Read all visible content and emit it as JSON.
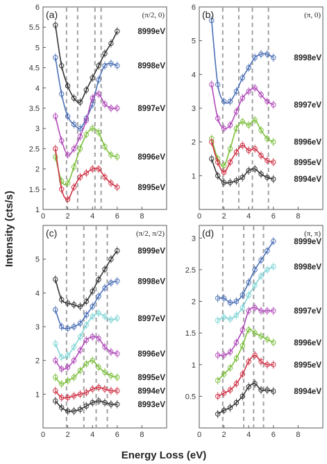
{
  "ylabel": "Intensity (cts/s)",
  "xlabel": "Energy Loss (eV)",
  "colors": {
    "black": "#333333",
    "blue": "#4a6fb5",
    "magenta": "#b04ab8",
    "green": "#7cbf3c",
    "red": "#cf3347",
    "cyan": "#7fd4d6",
    "dashed": "#a0a0a0"
  },
  "chart_data": [
    {
      "type": "line",
      "panel_label": "(a)",
      "q_label": "(π/2, 0)",
      "xlim": [
        0,
        10
      ],
      "ylim": [
        1,
        6
      ],
      "xticks": [
        "0",
        "2",
        "4",
        "6",
        "8"
      ],
      "yticks": [
        "1",
        "1.5",
        "2",
        "2.5",
        "3",
        "3.5",
        "4",
        "4.5",
        "5",
        "5.5",
        "6"
      ],
      "dashed_lines": [
        1.9,
        2.8,
        4.2,
        4.7
      ],
      "series": [
        {
          "name": "8999eV",
          "color": "black",
          "x": [
            1.0,
            1.5,
            2.0,
            2.5,
            3.0,
            3.5,
            4.0,
            4.5,
            5.0,
            5.5,
            6.0
          ],
          "y": [
            5.55,
            4.55,
            4.05,
            3.75,
            3.65,
            3.95,
            4.25,
            4.55,
            4.85,
            5.1,
            5.4
          ]
        },
        {
          "name": "8998eV",
          "color": "blue",
          "x": [
            1.0,
            1.5,
            2.0,
            2.5,
            3.0,
            3.5,
            4.0,
            4.5,
            5.0,
            5.5,
            6.0
          ],
          "y": [
            4.75,
            3.85,
            3.3,
            3.1,
            3.0,
            3.25,
            3.6,
            4.2,
            4.55,
            4.6,
            4.55
          ]
        },
        {
          "name": "8997eV",
          "color": "magenta",
          "x": [
            1.0,
            1.5,
            2.0,
            2.5,
            3.0,
            3.5,
            4.0,
            4.5,
            5.0,
            5.5,
            6.0
          ],
          "y": [
            3.3,
            2.7,
            2.35,
            2.5,
            2.8,
            3.2,
            3.75,
            3.85,
            3.6,
            3.5,
            3.5
          ]
        },
        {
          "name": "8996eV",
          "color": "green",
          "x": [
            1.0,
            1.5,
            2.0,
            2.5,
            3.0,
            3.5,
            4.0,
            4.5,
            5.0,
            5.5,
            6.0
          ],
          "y": [
            2.3,
            1.7,
            1.65,
            2.05,
            2.5,
            2.85,
            3.0,
            2.9,
            2.55,
            2.35,
            2.3
          ]
        },
        {
          "name": "8995eV",
          "color": "red",
          "x": [
            1.0,
            1.5,
            2.0,
            2.5,
            3.0,
            3.5,
            4.0,
            4.5,
            5.0,
            5.5,
            6.0
          ],
          "y": [
            2.5,
            1.5,
            1.25,
            1.55,
            1.8,
            1.9,
            2.0,
            2.0,
            1.8,
            1.65,
            1.55
          ]
        }
      ]
    },
    {
      "type": "line",
      "panel_label": "(b)",
      "q_label": "(π, 0)",
      "xlim": [
        0,
        10
      ],
      "ylim": [
        0,
        6
      ],
      "xticks": [
        "0",
        "2",
        "4",
        "6",
        "8"
      ],
      "yticks": [
        "1",
        "2",
        "3",
        "4",
        "5",
        "6"
      ],
      "dashed_lines": [
        1.9,
        3.2,
        4.3,
        5.6
      ],
      "series": [
        {
          "name": "8998eV",
          "color": "blue",
          "x": [
            1.0,
            1.5,
            2.0,
            2.5,
            3.0,
            3.5,
            4.0,
            4.5,
            5.0,
            5.5,
            6.0
          ],
          "y": [
            5.6,
            3.7,
            3.2,
            3.2,
            3.5,
            3.9,
            4.2,
            4.5,
            4.6,
            4.6,
            4.5
          ]
        },
        {
          "name": "8997eV",
          "color": "magenta",
          "x": [
            1.0,
            1.5,
            2.0,
            2.5,
            3.0,
            3.5,
            4.0,
            4.5,
            5.0,
            5.5,
            6.0
          ],
          "y": [
            3.7,
            2.7,
            2.4,
            2.5,
            2.9,
            3.3,
            3.5,
            3.6,
            3.4,
            3.2,
            3.1
          ]
        },
        {
          "name": "8996eV",
          "color": "green",
          "x": [
            1.0,
            1.5,
            2.0,
            2.5,
            3.0,
            3.5,
            4.0,
            4.5,
            5.0,
            5.5,
            6.0
          ],
          "y": [
            2.1,
            1.5,
            1.3,
            1.8,
            2.4,
            2.6,
            2.5,
            2.65,
            2.35,
            2.1,
            2.0
          ]
        },
        {
          "name": "8995eV",
          "color": "red",
          "x": [
            1.0,
            1.5,
            2.0,
            2.5,
            3.0,
            3.5,
            4.0,
            4.5,
            5.0,
            5.5,
            6.0
          ],
          "y": [
            2.0,
            1.4,
            1.1,
            1.4,
            1.7,
            1.9,
            1.75,
            1.8,
            1.6,
            1.45,
            1.4
          ]
        },
        {
          "name": "8994eV",
          "color": "black",
          "x": [
            1.0,
            1.5,
            2.0,
            2.5,
            3.0,
            3.5,
            4.0,
            4.5,
            5.0,
            5.5,
            6.0
          ],
          "y": [
            1.5,
            1.0,
            0.8,
            0.8,
            0.85,
            0.95,
            1.15,
            1.2,
            1.05,
            0.95,
            0.9
          ]
        }
      ]
    },
    {
      "type": "line",
      "panel_label": "(c)",
      "q_label": "(π/2, π/2)",
      "xlim": [
        0,
        10
      ],
      "ylim": [
        0,
        6
      ],
      "xticks": [
        "0",
        "2",
        "4",
        "6",
        "8"
      ],
      "yticks": [
        "1",
        "2",
        "3",
        "4",
        "5"
      ],
      "dashed_lines": [
        1.9,
        3.3,
        4.3,
        5.2
      ],
      "series": [
        {
          "name": "8999eV",
          "color": "black",
          "x": [
            1.0,
            1.5,
            2.0,
            2.5,
            3.0,
            3.5,
            4.0,
            4.5,
            5.0,
            5.5,
            6.0
          ],
          "y": [
            4.4,
            3.8,
            3.7,
            3.65,
            3.6,
            3.75,
            4.05,
            4.4,
            4.7,
            5.0,
            5.25
          ]
        },
        {
          "name": "8998eV",
          "color": "blue",
          "x": [
            1.0,
            1.5,
            2.0,
            2.5,
            3.0,
            3.5,
            4.0,
            4.5,
            5.0,
            5.5,
            6.0
          ],
          "y": [
            3.5,
            3.0,
            2.95,
            3.0,
            3.1,
            3.35,
            3.6,
            3.9,
            4.15,
            4.3,
            4.35
          ]
        },
        {
          "name": "8997eV",
          "color": "cyan",
          "x": [
            1.0,
            1.5,
            2.0,
            2.5,
            3.0,
            3.5,
            4.0,
            4.5,
            5.0,
            5.5,
            6.0
          ],
          "y": [
            2.5,
            2.1,
            2.15,
            2.4,
            2.7,
            3.05,
            3.3,
            3.4,
            3.3,
            3.2,
            3.25
          ]
        },
        {
          "name": "8996eV",
          "color": "magenta",
          "x": [
            1.0,
            1.5,
            2.0,
            2.5,
            3.0,
            3.5,
            4.0,
            4.5,
            5.0,
            5.5,
            6.0
          ],
          "y": [
            2.0,
            1.75,
            1.8,
            2.0,
            2.3,
            2.6,
            2.7,
            2.65,
            2.4,
            2.25,
            2.2
          ]
        },
        {
          "name": "8995eV",
          "color": "green",
          "x": [
            1.0,
            1.5,
            2.0,
            2.5,
            3.0,
            3.5,
            4.0,
            4.5,
            5.0,
            5.5,
            6.0
          ],
          "y": [
            1.5,
            1.3,
            1.4,
            1.5,
            1.7,
            1.9,
            2.0,
            1.8,
            1.65,
            1.55,
            1.5
          ]
        },
        {
          "name": "8994eV",
          "color": "red",
          "x": [
            1.0,
            1.5,
            2.0,
            2.5,
            3.0,
            3.5,
            4.0,
            4.5,
            5.0,
            5.5,
            6.0
          ],
          "y": [
            1.1,
            0.9,
            0.9,
            0.95,
            1.0,
            1.05,
            1.15,
            1.2,
            1.15,
            1.1,
            1.1
          ]
        },
        {
          "name": "8993eV",
          "color": "black",
          "x": [
            1.0,
            1.5,
            2.0,
            2.5,
            3.0,
            3.5,
            4.0,
            4.5,
            5.0,
            5.5,
            6.0
          ],
          "y": [
            0.8,
            0.6,
            0.5,
            0.5,
            0.55,
            0.65,
            0.75,
            0.8,
            0.75,
            0.7,
            0.7
          ]
        }
      ]
    },
    {
      "type": "line",
      "panel_label": "(d)",
      "q_label": "(π, π)",
      "xlim": [
        0,
        10
      ],
      "ylim": [
        0,
        3.2
      ],
      "xticks": [
        "0",
        "2",
        "4",
        "6",
        "8"
      ],
      "yticks": [
        "0.5",
        "1",
        "1.5",
        "2",
        "2.5",
        "3"
      ],
      "dashed_lines": [
        1.9,
        3.6,
        4.4,
        5.2
      ],
      "series": [
        {
          "name": "8999eV",
          "color": "blue",
          "x": [
            1.5,
            2.0,
            2.5,
            3.0,
            3.5,
            4.0,
            4.5,
            5.0,
            5.5,
            6.0
          ],
          "y": [
            2.05,
            2.05,
            1.98,
            2.0,
            2.1,
            2.3,
            2.5,
            2.65,
            2.8,
            2.95
          ]
        },
        {
          "name": "8998eV",
          "color": "cyan",
          "x": [
            1.5,
            2.0,
            2.5,
            3.0,
            3.5,
            4.0,
            4.5,
            5.0,
            5.5,
            6.0
          ],
          "y": [
            1.7,
            1.75,
            1.72,
            1.78,
            1.9,
            2.1,
            2.25,
            2.4,
            2.5,
            2.55
          ]
        },
        {
          "name": "8997eV",
          "color": "magenta",
          "x": [
            1.5,
            2.0,
            2.5,
            3.0,
            3.5,
            4.0,
            4.5,
            5.0,
            5.5,
            6.0
          ],
          "y": [
            1.15,
            1.15,
            1.2,
            1.35,
            1.55,
            1.85,
            1.9,
            1.85,
            1.85,
            1.85
          ]
        },
        {
          "name": "8996eV",
          "color": "green",
          "x": [
            1.5,
            2.0,
            2.5,
            3.0,
            3.5,
            4.0,
            4.5,
            5.0,
            5.5,
            6.0
          ],
          "y": [
            0.75,
            0.85,
            0.95,
            1.1,
            1.3,
            1.55,
            1.5,
            1.45,
            1.4,
            1.35
          ]
        },
        {
          "name": "8995eV",
          "color": "red",
          "x": [
            1.5,
            2.0,
            2.5,
            3.0,
            3.5,
            4.0,
            4.5,
            5.0,
            5.5,
            6.0
          ],
          "y": [
            0.5,
            0.55,
            0.6,
            0.7,
            0.85,
            1.05,
            1.15,
            1.05,
            1.0,
            1.0
          ]
        },
        {
          "name": "8994eV",
          "color": "black",
          "x": [
            1.5,
            2.0,
            2.5,
            3.0,
            3.5,
            4.0,
            4.5,
            5.0,
            5.5,
            6.0
          ],
          "y": [
            0.22,
            0.28,
            0.32,
            0.4,
            0.5,
            0.65,
            0.7,
            0.6,
            0.6,
            0.58
          ]
        }
      ]
    }
  ]
}
